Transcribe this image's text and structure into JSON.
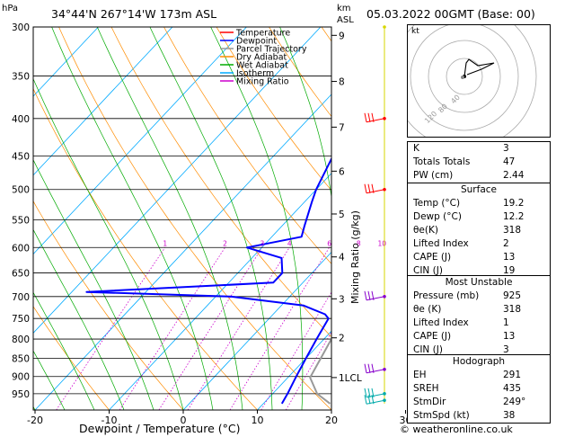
{
  "header": {
    "location": "34°44'N  267°14'W  173m  ASL",
    "datetime": "05.03.2022  00GMT  (Base: 00)",
    "hpa_label": "hPa",
    "km_label": "km",
    "asl_label": "ASL",
    "hodo_unit": "kt"
  },
  "legend": [
    {
      "label": "Temperature",
      "color": "#ff0000"
    },
    {
      "label": "Dewpoint",
      "color": "#0000ff"
    },
    {
      "label": "Parcel Trajectory",
      "color": "#999999"
    },
    {
      "label": "Dry Adiabat",
      "color": "#ff8c00"
    },
    {
      "label": "Wet Adiabat",
      "color": "#00aa00"
    },
    {
      "label": "Isotherm",
      "color": "#00aaff"
    },
    {
      "label": "Mixing Ratio",
      "color": "#cc00cc"
    }
  ],
  "chart_data": {
    "type": "skew-t",
    "xlabel": "Dewpoint / Temperature (°C)",
    "ylabel_right": "Mixing Ratio (g/kg)",
    "x_ticks": [
      "-40",
      "-30",
      "-20",
      "-10",
      "0",
      "10",
      "20",
      "30",
      "40"
    ],
    "pressure_ticks": [
      "300",
      "350",
      "400",
      "450",
      "500",
      "550",
      "600",
      "650",
      "700",
      "750",
      "800",
      "850",
      "900",
      "950"
    ],
    "km_ticks": [
      {
        "label": "9",
        "p": 308
      },
      {
        "label": "8",
        "p": 356
      },
      {
        "label": "7",
        "p": 411
      },
      {
        "label": "6",
        "p": 472
      },
      {
        "label": "5",
        "p": 540
      },
      {
        "label": "4",
        "p": 618
      },
      {
        "label": "3",
        "p": 705
      },
      {
        "label": "2",
        "p": 797
      },
      {
        "label": "1LCL",
        "p": 903
      }
    ],
    "mixing_ratio_labels": [
      "1",
      "2",
      "3",
      "4",
      "6",
      "8",
      "10",
      "16",
      "20",
      "25"
    ],
    "temperature": [
      [
        300,
        -15
      ],
      [
        330,
        -12
      ],
      [
        360,
        -8
      ],
      [
        400,
        -5
      ],
      [
        420,
        -4
      ],
      [
        450,
        -3
      ],
      [
        500,
        1
      ],
      [
        550,
        4
      ],
      [
        600,
        6
      ],
      [
        650,
        10
      ],
      [
        700,
        13.5
      ],
      [
        720,
        13
      ],
      [
        750,
        12
      ],
      [
        800,
        13
      ],
      [
        850,
        15
      ],
      [
        900,
        17
      ],
      [
        950,
        19
      ],
      [
        980,
        20
      ]
    ],
    "dewpoint": [
      [
        300,
        -18
      ],
      [
        330,
        -17
      ],
      [
        360,
        -16
      ],
      [
        400,
        -12
      ],
      [
        430,
        -12
      ],
      [
        450,
        -12
      ],
      [
        500,
        -10
      ],
      [
        520,
        -9
      ],
      [
        560,
        -7
      ],
      [
        580,
        -6
      ],
      [
        600,
        -12
      ],
      [
        620,
        -6
      ],
      [
        650,
        -4
      ],
      [
        670,
        -4
      ],
      [
        690,
        -28
      ],
      [
        700,
        -8
      ],
      [
        720,
        3
      ],
      [
        740,
        7
      ],
      [
        750,
        8
      ],
      [
        800,
        9
      ],
      [
        850,
        10
      ],
      [
        900,
        11
      ],
      [
        950,
        12
      ],
      [
        980,
        12.5
      ]
    ],
    "parcel": [
      [
        300,
        -19
      ],
      [
        350,
        -15
      ],
      [
        400,
        -9
      ],
      [
        450,
        -5
      ],
      [
        500,
        -2
      ],
      [
        550,
        1
      ],
      [
        600,
        3
      ],
      [
        650,
        6
      ],
      [
        700,
        8
      ],
      [
        750,
        10
      ],
      [
        800,
        11
      ],
      [
        850,
        12
      ],
      [
        903,
        13
      ],
      [
        950,
        16
      ],
      [
        980,
        19
      ]
    ],
    "wind_barbs_p": [
      400,
      500,
      700,
      880,
      950,
      970
    ]
  },
  "hodograph": {
    "ring_labels": [
      "40",
      "80",
      "120"
    ]
  },
  "indices": {
    "general": [
      {
        "k": "K",
        "v": "3"
      },
      {
        "k": "Totals Totals",
        "v": "47"
      },
      {
        "k": "PW (cm)",
        "v": "2.44"
      }
    ],
    "surface_title": "Surface",
    "surface": [
      {
        "k": "Temp (°C)",
        "v": "19.2"
      },
      {
        "k": "Dewp (°C)",
        "v": "12.2"
      },
      {
        "k": "θe(K)",
        "v": "318"
      },
      {
        "k": "Lifted Index",
        "v": "2"
      },
      {
        "k": "CAPE (J)",
        "v": "13"
      },
      {
        "k": "CIN (J)",
        "v": "19"
      }
    ],
    "unstable_title": "Most Unstable",
    "unstable": [
      {
        "k": "Pressure (mb)",
        "v": "925"
      },
      {
        "k": "θe (K)",
        "v": "318"
      },
      {
        "k": "Lifted Index",
        "v": "1"
      },
      {
        "k": "CAPE (J)",
        "v": "13"
      },
      {
        "k": "CIN (J)",
        "v": "3"
      }
    ],
    "hodograph_title": "Hodograph",
    "hodo": [
      {
        "k": "EH",
        "v": "291"
      },
      {
        "k": "SREH",
        "v": "435"
      },
      {
        "k": "StmDir",
        "v": "249°"
      },
      {
        "k": "StmSpd (kt)",
        "v": "38"
      }
    ]
  },
  "footer": "© weatheronline.co.uk"
}
